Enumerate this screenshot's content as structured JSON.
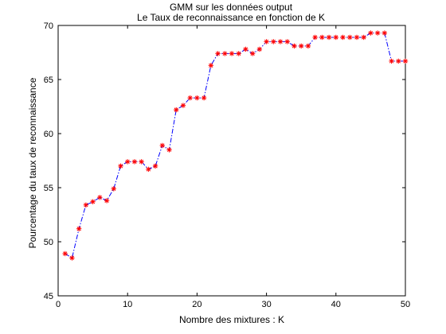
{
  "chart_data": {
    "type": "line",
    "title": "GMM sur les données output",
    "subtitle": "Le Taux de reconnaissance en fonction de K",
    "xlabel": "Nombre des mixtures : K",
    "ylabel": "Pourcentage du taux de reconnaissance",
    "xlim": [
      0,
      50
    ],
    "ylim": [
      45,
      70
    ],
    "xticks": [
      0,
      10,
      20,
      30,
      40,
      50
    ],
    "yticks": [
      45,
      50,
      55,
      60,
      65,
      70
    ],
    "grid": false,
    "legend": "none",
    "line_color": "#0000ff",
    "line_style": "dash-dot",
    "marker": "asterisk",
    "marker_color": "#ff0000",
    "x": [
      1,
      2,
      3,
      4,
      5,
      6,
      7,
      8,
      9,
      10,
      11,
      12,
      13,
      14,
      15,
      16,
      17,
      18,
      19,
      20,
      21,
      22,
      23,
      24,
      25,
      26,
      27,
      28,
      29,
      30,
      31,
      32,
      33,
      34,
      35,
      36,
      37,
      38,
      39,
      40,
      41,
      42,
      43,
      44,
      45,
      46,
      47,
      48,
      49,
      50
    ],
    "values": [
      48.9,
      48.5,
      51.2,
      53.4,
      53.7,
      54.1,
      53.8,
      54.9,
      57.0,
      57.4,
      57.4,
      57.4,
      56.7,
      57.0,
      58.9,
      58.5,
      62.2,
      62.6,
      63.3,
      63.3,
      63.3,
      66.3,
      67.4,
      67.4,
      67.4,
      67.4,
      67.8,
      67.4,
      67.8,
      68.5,
      68.5,
      68.5,
      68.5,
      68.1,
      68.1,
      68.1,
      68.9,
      68.9,
      68.9,
      68.9,
      68.9,
      68.9,
      68.9,
      68.9,
      69.3,
      69.3,
      69.3,
      66.7,
      66.7,
      66.7
    ]
  }
}
